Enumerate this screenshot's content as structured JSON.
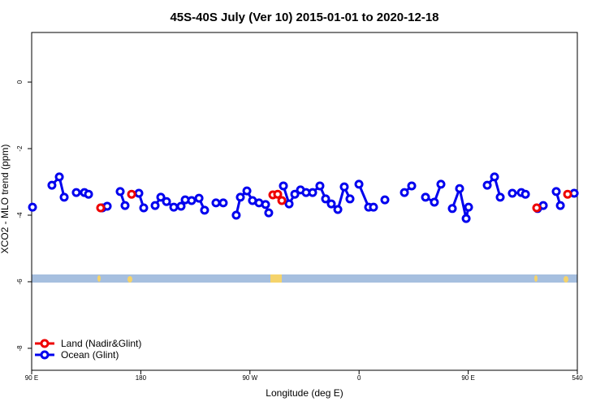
{
  "chart_data": {
    "type": "line",
    "title": "45S-40S July (Ver 10)   2015-01-01 to 2020-12-18",
    "x_label": "Longitude (deg E)",
    "y_label": "XCO2 - MLO trend (ppm)",
    "xlim": [
      90,
      540
    ],
    "ylim": [
      -8.66,
      1.49
    ],
    "xticks": [
      {
        "value": 90,
        "label": "90 E"
      },
      180,
      {
        "value": 270,
        "label": "90 W"
      },
      {
        "value": 360,
        "label": "0"
      },
      {
        "value": 450,
        "label": "90 E"
      },
      540
    ],
    "yticks": [
      -8,
      -6,
      -4,
      -2,
      0
    ],
    "legend": "bottom-left",
    "series": [
      {
        "name": "Ocean (Glint)",
        "color": "#0000ee",
        "line": true,
        "x": [
          90.7,
          null,
          106.7,
          112.8,
          116.8,
          null,
          126.8,
          null,
          133.5,
          136.9,
          null,
          148.3,
          152.3,
          null,
          163,
          167,
          null,
          178.4,
          182.4,
          null,
          191.8,
          196.5,
          201.2,
          207.2,
          213.2,
          216.6,
          221.9,
          228,
          232.6,
          null,
          242,
          248,
          null,
          258.7,
          262.1,
          267.5,
          272.1,
          277.5,
          282.9,
          285.5,
          null,
          297.6,
          302.3,
          307,
          311.7,
          316.3,
          321.7,
          327.7,
          332.4,
          337.1,
          342.5,
          347.8,
          352.5,
          null,
          359.9,
          367.9,
          371.9,
          null,
          381.3,
          null,
          397.4,
          403.4,
          null,
          414.8,
          422.1,
          427.5,
          null,
          436.9,
          442.9,
          448.3,
          450.3,
          null,
          465.7,
          471.7,
          476.4,
          null,
          486.4,
          493.8,
          497.2,
          null,
          507.2,
          511.9,
          null,
          522.6,
          526,
          null,
          537.4
        ],
        "values": [
          -3.76,
          null,
          -3.1,
          -2.85,
          -3.46,
          null,
          -3.32,
          null,
          -3.32,
          -3.37,
          null,
          -3.78,
          -3.73,
          null,
          -3.29,
          -3.71,
          null,
          -3.34,
          -3.78,
          null,
          -3.71,
          -3.46,
          -3.59,
          -3.76,
          -3.73,
          -3.54,
          -3.56,
          -3.49,
          -3.85,
          null,
          -3.63,
          -3.63,
          null,
          -4.0,
          -3.46,
          -3.27,
          -3.56,
          -3.63,
          -3.68,
          -3.93,
          null,
          -3.12,
          -3.66,
          -3.37,
          -3.24,
          -3.32,
          -3.32,
          -3.12,
          -3.51,
          -3.66,
          -3.83,
          -3.15,
          -3.51,
          null,
          -3.07,
          -3.76,
          -3.76,
          null,
          -3.54,
          null,
          -3.32,
          -3.12,
          null,
          -3.46,
          -3.61,
          -3.07,
          null,
          -3.8,
          -3.2,
          -4.1,
          -3.76,
          null,
          -3.1,
          -2.85,
          -3.46,
          null,
          -3.34,
          -3.32,
          -3.37,
          null,
          -3.8,
          -3.71,
          null,
          -3.29,
          -3.71,
          null,
          -3.34
        ]
      },
      {
        "name": "Land (Nadir&Glint)",
        "color": "#ee0000",
        "line": false,
        "x": [
          146.9,
          172.4,
          288.9,
          292.9,
          296.3,
          506.5,
          532
        ],
        "values": [
          -3.78,
          -3.37,
          -3.39,
          -3.37,
          -3.56,
          -3.78,
          -3.37
        ]
      }
    ]
  }
}
